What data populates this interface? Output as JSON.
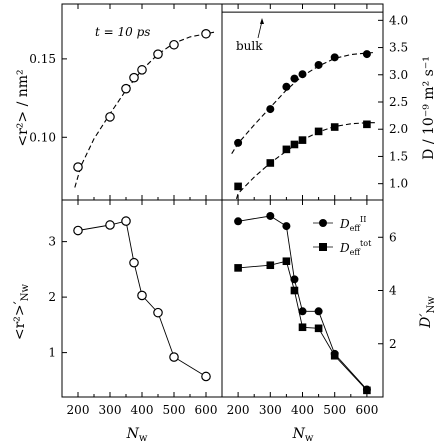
{
  "chart_data": [
    {
      "panel": "top-left",
      "type": "scatter",
      "ylabel": "<r²> / nm²",
      "annotation": "t = 10 ps",
      "xlim": [
        150,
        650
      ],
      "ylim": [
        0.06,
        0.185
      ],
      "xticks": [
        200,
        300,
        400,
        500,
        600
      ],
      "yticks": [
        0.1,
        0.15
      ],
      "ytick_labels": [
        "0.10",
        "0.15"
      ],
      "series": [
        {
          "marker": "open-circle",
          "x": [
            200,
            300,
            350,
            375,
            400,
            450,
            500,
            600
          ],
          "y": [
            0.081,
            0.113,
            0.131,
            0.138,
            0.143,
            0.153,
            0.159,
            0.166
          ]
        }
      ],
      "fit": {
        "style": "dashed",
        "x": [
          190,
          210,
          250,
          300,
          350,
          400,
          450,
          500,
          550,
          600,
          625
        ],
        "y": [
          0.068,
          0.082,
          0.099,
          0.115,
          0.13,
          0.143,
          0.153,
          0.16,
          0.164,
          0.166,
          0.167
        ]
      }
    },
    {
      "panel": "top-right",
      "type": "scatter",
      "ylabel": "D / 10⁻⁹ m² s⁻¹",
      "annotation": "bulk",
      "bulk_value": 4.15,
      "xlim": [
        150,
        650
      ],
      "ylim": [
        0.7,
        4.3
      ],
      "xticks": [
        200,
        300,
        400,
        500,
        600
      ],
      "yticks": [
        1.0,
        1.5,
        2.0,
        2.5,
        3.0,
        3.5,
        4.0
      ],
      "ytick_labels": [
        "1.0",
        "1.5",
        "2.0",
        "2.5",
        "3.0",
        "3.5",
        "4.0"
      ],
      "series": [
        {
          "marker": "filled-circle",
          "x": [
            200,
            300,
            350,
            375,
            400,
            450,
            500,
            600
          ],
          "y": [
            1.75,
            2.37,
            2.78,
            2.93,
            3.01,
            3.18,
            3.32,
            3.38
          ]
        },
        {
          "marker": "filled-square",
          "x": [
            200,
            300,
            350,
            375,
            400,
            450,
            500,
            600
          ],
          "y": [
            0.95,
            1.38,
            1.63,
            1.72,
            1.8,
            1.96,
            2.04,
            2.09
          ]
        }
      ],
      "fits": [
        {
          "style": "dashed",
          "x": [
            180,
            200,
            250,
            300,
            350,
            400,
            450,
            500,
            550,
            600,
            625
          ],
          "y": [
            1.55,
            1.74,
            2.08,
            2.4,
            2.72,
            2.98,
            3.16,
            3.3,
            3.37,
            3.4,
            3.41
          ]
        },
        {
          "style": "dashed",
          "x": [
            195,
            200,
            250,
            300,
            350,
            400,
            450,
            500,
            550,
            600,
            625
          ],
          "y": [
            0.72,
            0.82,
            1.12,
            1.38,
            1.6,
            1.8,
            1.95,
            2.05,
            2.1,
            2.12,
            2.12
          ]
        }
      ]
    },
    {
      "panel": "bottom-left",
      "type": "line",
      "xlabel": "N",
      "xlabel_sub": "w",
      "ylabel": "<r²>′",
      "ylabel_sub": "Nw",
      "xlim": [
        150,
        650
      ],
      "ylim": [
        0.2,
        3.75
      ],
      "xticks": [
        200,
        300,
        400,
        500,
        600
      ],
      "xtick_labels": [
        "200",
        "300",
        "400",
        "500",
        "600"
      ],
      "yticks": [
        1,
        2,
        3
      ],
      "ytick_labels": [
        "1",
        "2",
        "3"
      ],
      "series": [
        {
          "marker": "open-circle",
          "x": [
            200,
            300,
            350,
            375,
            400,
            450,
            500,
            600
          ],
          "y": [
            3.2,
            3.3,
            3.37,
            2.62,
            2.03,
            1.72,
            0.92,
            0.57
          ]
        }
      ]
    },
    {
      "panel": "bottom-right",
      "type": "line",
      "xlabel": "N",
      "xlabel_sub": "w",
      "ylabel": "D′",
      "ylabel_sub": "Nw",
      "xlim": [
        150,
        650
      ],
      "ylim": [
        0,
        7.4
      ],
      "xticks": [
        200,
        300,
        400,
        500,
        600
      ],
      "xtick_labels": [
        "200",
        "300",
        "400",
        "500",
        "600"
      ],
      "yticks": [
        2,
        4,
        6
      ],
      "ytick_labels": [
        "2",
        "4",
        "6"
      ],
      "legend_position": "top-right",
      "series": [
        {
          "name": "D_eff^II",
          "legend_main": "D",
          "legend_sub": "eff",
          "legend_sup": "II",
          "marker": "filled-circle",
          "x": [
            200,
            300,
            350,
            375,
            400,
            450,
            500,
            600
          ],
          "y": [
            6.6,
            6.8,
            6.42,
            4.42,
            3.22,
            3.22,
            1.62,
            0.28
          ]
        },
        {
          "name": "D_eff^tot",
          "legend_main": "D",
          "legend_sub": "eff",
          "legend_sup": "tot",
          "marker": "filled-square",
          "x": [
            200,
            300,
            350,
            375,
            400,
            450,
            500,
            600
          ],
          "y": [
            4.85,
            4.95,
            5.1,
            4.0,
            2.62,
            2.58,
            1.55,
            0.25
          ]
        }
      ]
    }
  ]
}
